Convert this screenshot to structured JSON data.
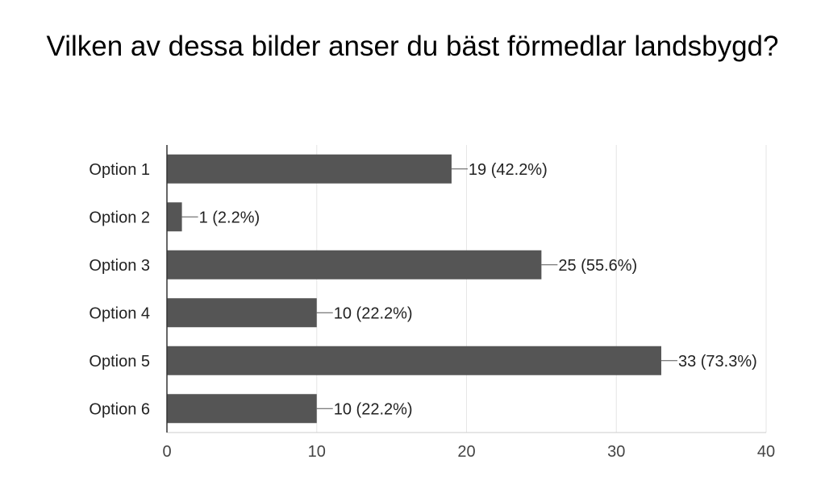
{
  "chart_data": {
    "type": "bar",
    "orientation": "horizontal",
    "title": "Vilken av dessa bilder anser du bäst förmedlar landsbygd?",
    "categories": [
      "Option 1",
      "Option 2",
      "Option 3",
      "Option 4",
      "Option 5",
      "Option 6"
    ],
    "values": [
      19,
      1,
      25,
      10,
      33,
      10
    ],
    "data_labels": [
      "19 (42.2%)",
      "1 (2.2%)",
      "25 (55.6%)",
      "10 (22.2%)",
      "33 (73.3%)",
      "10 (22.2%)"
    ],
    "xlim": [
      0,
      40
    ],
    "x_ticks": [
      "0",
      "10",
      "20",
      "30",
      "40"
    ],
    "grid": true,
    "legend": "none",
    "bar_color": "#555555",
    "grid_color": "#e6e6e6"
  }
}
